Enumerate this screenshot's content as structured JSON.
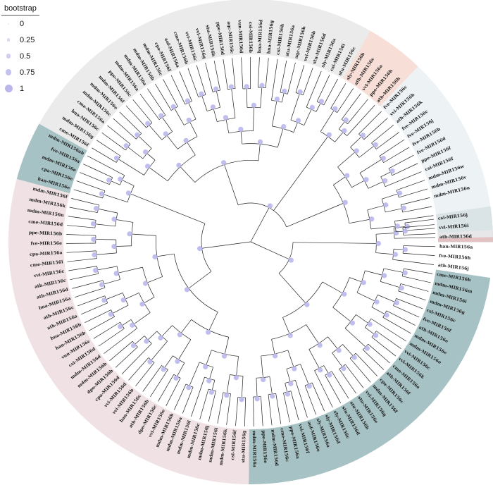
{
  "legend": {
    "title": "bootstrap",
    "items": [
      {
        "label": "0",
        "value": 0
      },
      {
        "label": "0.25",
        "value": 0.25
      },
      {
        "label": "0.5",
        "value": 0.5
      },
      {
        "label": "0.75",
        "value": 0.75
      },
      {
        "label": "1",
        "value": 1
      }
    ]
  },
  "colors": {
    "branch": "#222222",
    "bootstrap_dot": "#b9b7ec",
    "clade_grey": "#e6e6e6",
    "clade_salmon": "#f5d6cc",
    "clade_light_blue": "#e8eff3",
    "clade_pink_red": "#f3c4c4",
    "clade_teal_dark": "#5f8f93",
    "clade_teal_mid": "#86a8a8",
    "clade_rose": "#ecd9dd"
  },
  "leaves": [
    "csi-MIR156j",
    "vvi-MIR156i",
    "ath-MIR156d",
    "han-MIR156a",
    "fve-MIR156h",
    "ath-MIR156j",
    "cme-MIR156h",
    "mdm-MIR156m",
    "mdm-MIR156i",
    "mdm-MIR156g",
    "csi-MIR156c",
    "fve-MIR156f",
    "ath-MIR156e",
    "mdm-MIR156e",
    "mdm-MIR156o",
    "vvi-MIR156c",
    "vvi-MIR156k",
    "cme-MIR156e",
    "ath-MIR156f",
    "cpa-MIR156c",
    "mdm-MIR156f",
    "vvi-MIR156g",
    "stu-MIR156e",
    "stu-MIR156b",
    "stu-MIR156d",
    "sly-MIR156c",
    "sly-MIR156d",
    "sly-MIR156a",
    "aof-MIR156e",
    "vvi-MIR156f",
    "ppe-MIR156a",
    "cme-MIR156c",
    "mdm-MIR156d",
    "ppe-MIR156e",
    "mdm-MIR156a",
    "stu-MIR156g",
    "csi-MIR156f",
    "mdm-MIR156k",
    "mdm-MIR156i",
    "mdm-MIR156j",
    "mdm-MIR156c",
    "mdm-MIR156l",
    "mdm-MIR156a",
    "mdm-MIR156b",
    "vvi-MIR156e",
    "dpo-MIR156c",
    "ath-MIR156b",
    "han-MIR156c",
    "vvi-MIR156b",
    "vvi-MIR156d",
    "cpa-MIR156d",
    "dpo-MIR156b",
    "mdm-MIR156b",
    "mdm-MIR156d",
    "csi-MIR156d",
    "vun-MIR156c",
    "han-MIR156b",
    "bna-MIR156b",
    "ath-MIR156a",
    "ath-MIR156c",
    "bna-MIR156a",
    "ath-MIR156d",
    "ath-MIR156c",
    "vvi-MIR156c",
    "cme-MIR156i",
    "cpa-MIR156a",
    "fve-MIR156e",
    "ppe-MIR156b",
    "cme-MIR156d",
    "mdm-MIR156n",
    "mdm-MIR156k",
    "mdm-MIR156f",
    "han-MIR156e",
    "cpa-MIR156e",
    "mdm-MIR156e",
    "fve-MIR156a",
    "mdm-MIR156ab",
    "cme-MIR156f",
    "mdm-MIR156g",
    "bna-MIR156c",
    "cme-MIR156a",
    "mdm-MIR156c",
    "mdm-MIR156e",
    "mdm-MIR156f",
    "ppe-MIR156c",
    "mdm-MIR156a",
    "mdm-MIR156a",
    "mdm-MIR156b",
    "mdm-MIR156c",
    "cpa-MIR156f",
    "aof-MIR156a",
    "cme-MIR156b",
    "vvi-MIR156c",
    "vvi-MIR156g",
    "stu-MIR156h",
    "ppe-MIR156d",
    "aqc-MIR156c",
    "vun-MIR156d",
    "csi-MIR156b",
    "bna-MIR156d",
    "bna-MIR156g",
    "csi-MIR156h",
    "stu-MIR156a",
    "aqc-MIR156b",
    "vvi-MIR156b",
    "stu-MIR156d",
    "sly-MIR156a",
    "csi-MIR156i",
    "stu-MIR156c",
    "sly-MIR156b",
    "ath-MIR156c",
    "vvi-MIR156a",
    "ppe-MIR156h",
    "ath-MIR156h",
    "fve-MIR156c",
    "vvi-MIR156h",
    "ath-MIR156k",
    "fve-MIR156c",
    "fve-MIR156j",
    "fve-MIR156b",
    "fve-MIR156d",
    "ppe-MIR156f",
    "csi-MIR156f",
    "mdm-MIR156w",
    "mdm-MIR156v",
    "mdm-MIR156u"
  ]
}
